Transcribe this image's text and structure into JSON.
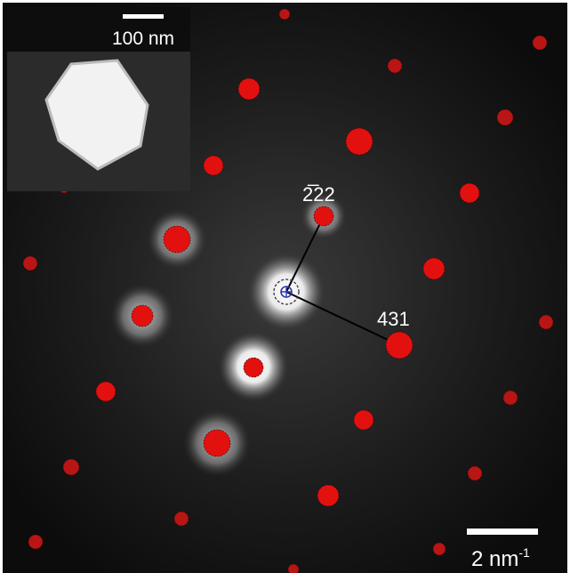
{
  "inset": {
    "scale_label": "100 nm"
  },
  "annotations": {
    "spot_a": "2̅",
    "spot_a_rest": "22",
    "spot_b": "431"
  },
  "scale_bar": {
    "label": "2 nm",
    "exponent": "-1"
  }
}
